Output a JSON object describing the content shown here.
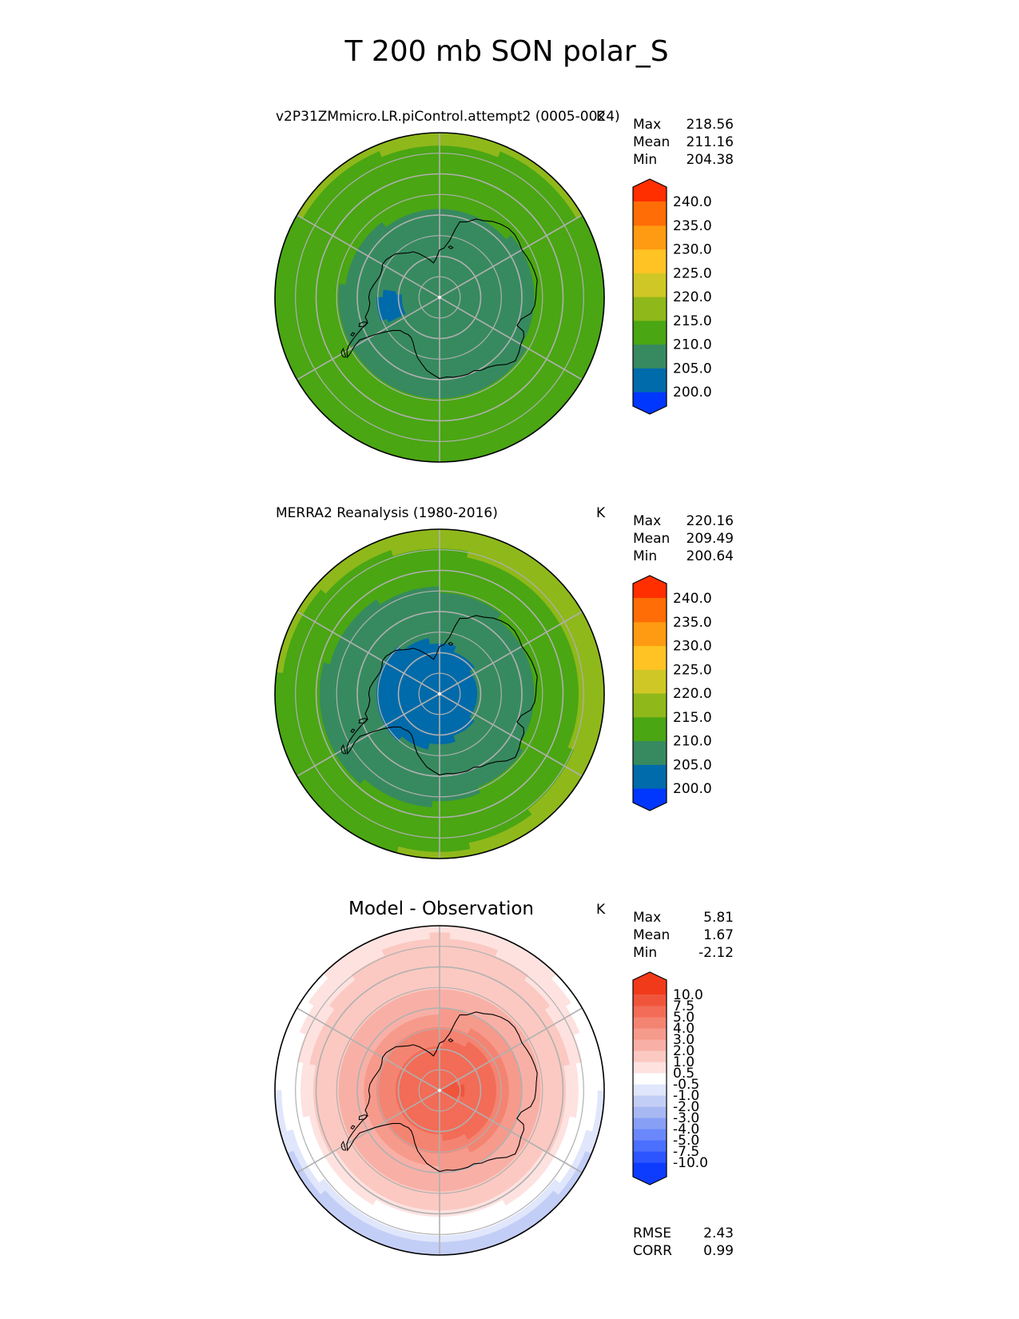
{
  "page_title": "T 200 mb SON polar_S",
  "stat_labels": {
    "max": "Max",
    "mean": "Mean",
    "min": "Min",
    "rmse": "RMSE",
    "corr": "CORR"
  },
  "colors": {
    "abs_levels": [
      "#0037ff",
      "#006baa",
      "#378a5f",
      "#4aa613",
      "#8fb81b",
      "#cfc725",
      "#ffc324",
      "#ff9b12",
      "#ff6d07",
      "#ff2f00"
    ],
    "abs_continent_tint": [
      "#0a4bd8",
      "#1a5b9a",
      "#3d8660",
      "#52a21c",
      "#94b320",
      "#cdc72a",
      "#f6bf26",
      "#f29b17",
      "#f17010",
      "#f03a05"
    ],
    "diff_levels": [
      "#0e3cff",
      "#2d55ff",
      "#4b6ffe",
      "#6a88fb",
      "#889ff6",
      "#a7b8f2",
      "#c3cef6",
      "#e0e6fb",
      "#ffffff",
      "#fde2e0",
      "#fbc9c1",
      "#f8b0a6",
      "#f69a8c",
      "#f48472",
      "#f26c57",
      "#f0553c",
      "#f13a1a"
    ],
    "grid": "#b0b0b0",
    "coast": "#000000"
  },
  "chart_data": [
    {
      "type": "polar-contour",
      "title": "v2P31ZMmicro.LR.piControl.attempt2 (0005-0024)",
      "units": "K",
      "stats": {
        "max": "218.56",
        "mean": "211.16",
        "min": "204.38"
      },
      "colorbar": {
        "levels": [
          200.0,
          205.0,
          210.0,
          215.0,
          220.0,
          225.0,
          230.0,
          235.0,
          240.0
        ],
        "tick_labels": [
          "200.0",
          "205.0",
          "210.0",
          "215.0",
          "220.0",
          "225.0",
          "230.0",
          "235.0",
          "240.0"
        ],
        "extend": "both"
      },
      "field": {
        "pole": 207,
        "cold_core_min": 204.4,
        "cold_core_lon": -75,
        "cold_core_lat": -78,
        "rim": 218.5,
        "lat_range": [
          -90,
          -50
        ]
      }
    },
    {
      "type": "polar-contour",
      "title": "MERRA2 Reanalysis (1980-2016)",
      "units": "K",
      "stats": {
        "max": "220.16",
        "mean": "209.49",
        "min": "200.64"
      },
      "colorbar": {
        "levels": [
          200.0,
          205.0,
          210.0,
          215.0,
          220.0,
          225.0,
          230.0,
          235.0,
          240.0
        ],
        "tick_labels": [
          "200.0",
          "205.0",
          "210.0",
          "215.0",
          "220.0",
          "225.0",
          "230.0",
          "235.0",
          "240.0"
        ],
        "extend": "both"
      },
      "field": {
        "pole": 202,
        "cold_core_min": 200.6,
        "rim": 220,
        "lat_range": [
          -90,
          -50
        ]
      }
    },
    {
      "type": "polar-contour",
      "title": "Model - Observation",
      "units": "K",
      "stats": {
        "max": "5.81",
        "mean": "1.67",
        "min": "-2.12"
      },
      "rmse": "2.43",
      "corr": "0.99",
      "colorbar": {
        "levels": [
          -10.0,
          -7.5,
          -5.0,
          -4.0,
          -3.0,
          -2.0,
          -1.0,
          -0.5,
          0.5,
          1.0,
          2.0,
          3.0,
          4.0,
          5.0,
          7.5,
          10.0
        ],
        "tick_labels": [
          "-10.0",
          "-7.5",
          "-5.0",
          "-4.0",
          "-3.0",
          "-2.0",
          "-1.0",
          "-0.5",
          "0.5",
          "1.0",
          "2.0",
          "3.0",
          "4.0",
          "5.0",
          "7.5",
          "10.0"
        ],
        "extend": "both"
      },
      "field": {
        "max_diff": 5.8,
        "max_diff_lon": 90,
        "min_diff": -2.1,
        "min_diff_lat": -52
      }
    }
  ]
}
